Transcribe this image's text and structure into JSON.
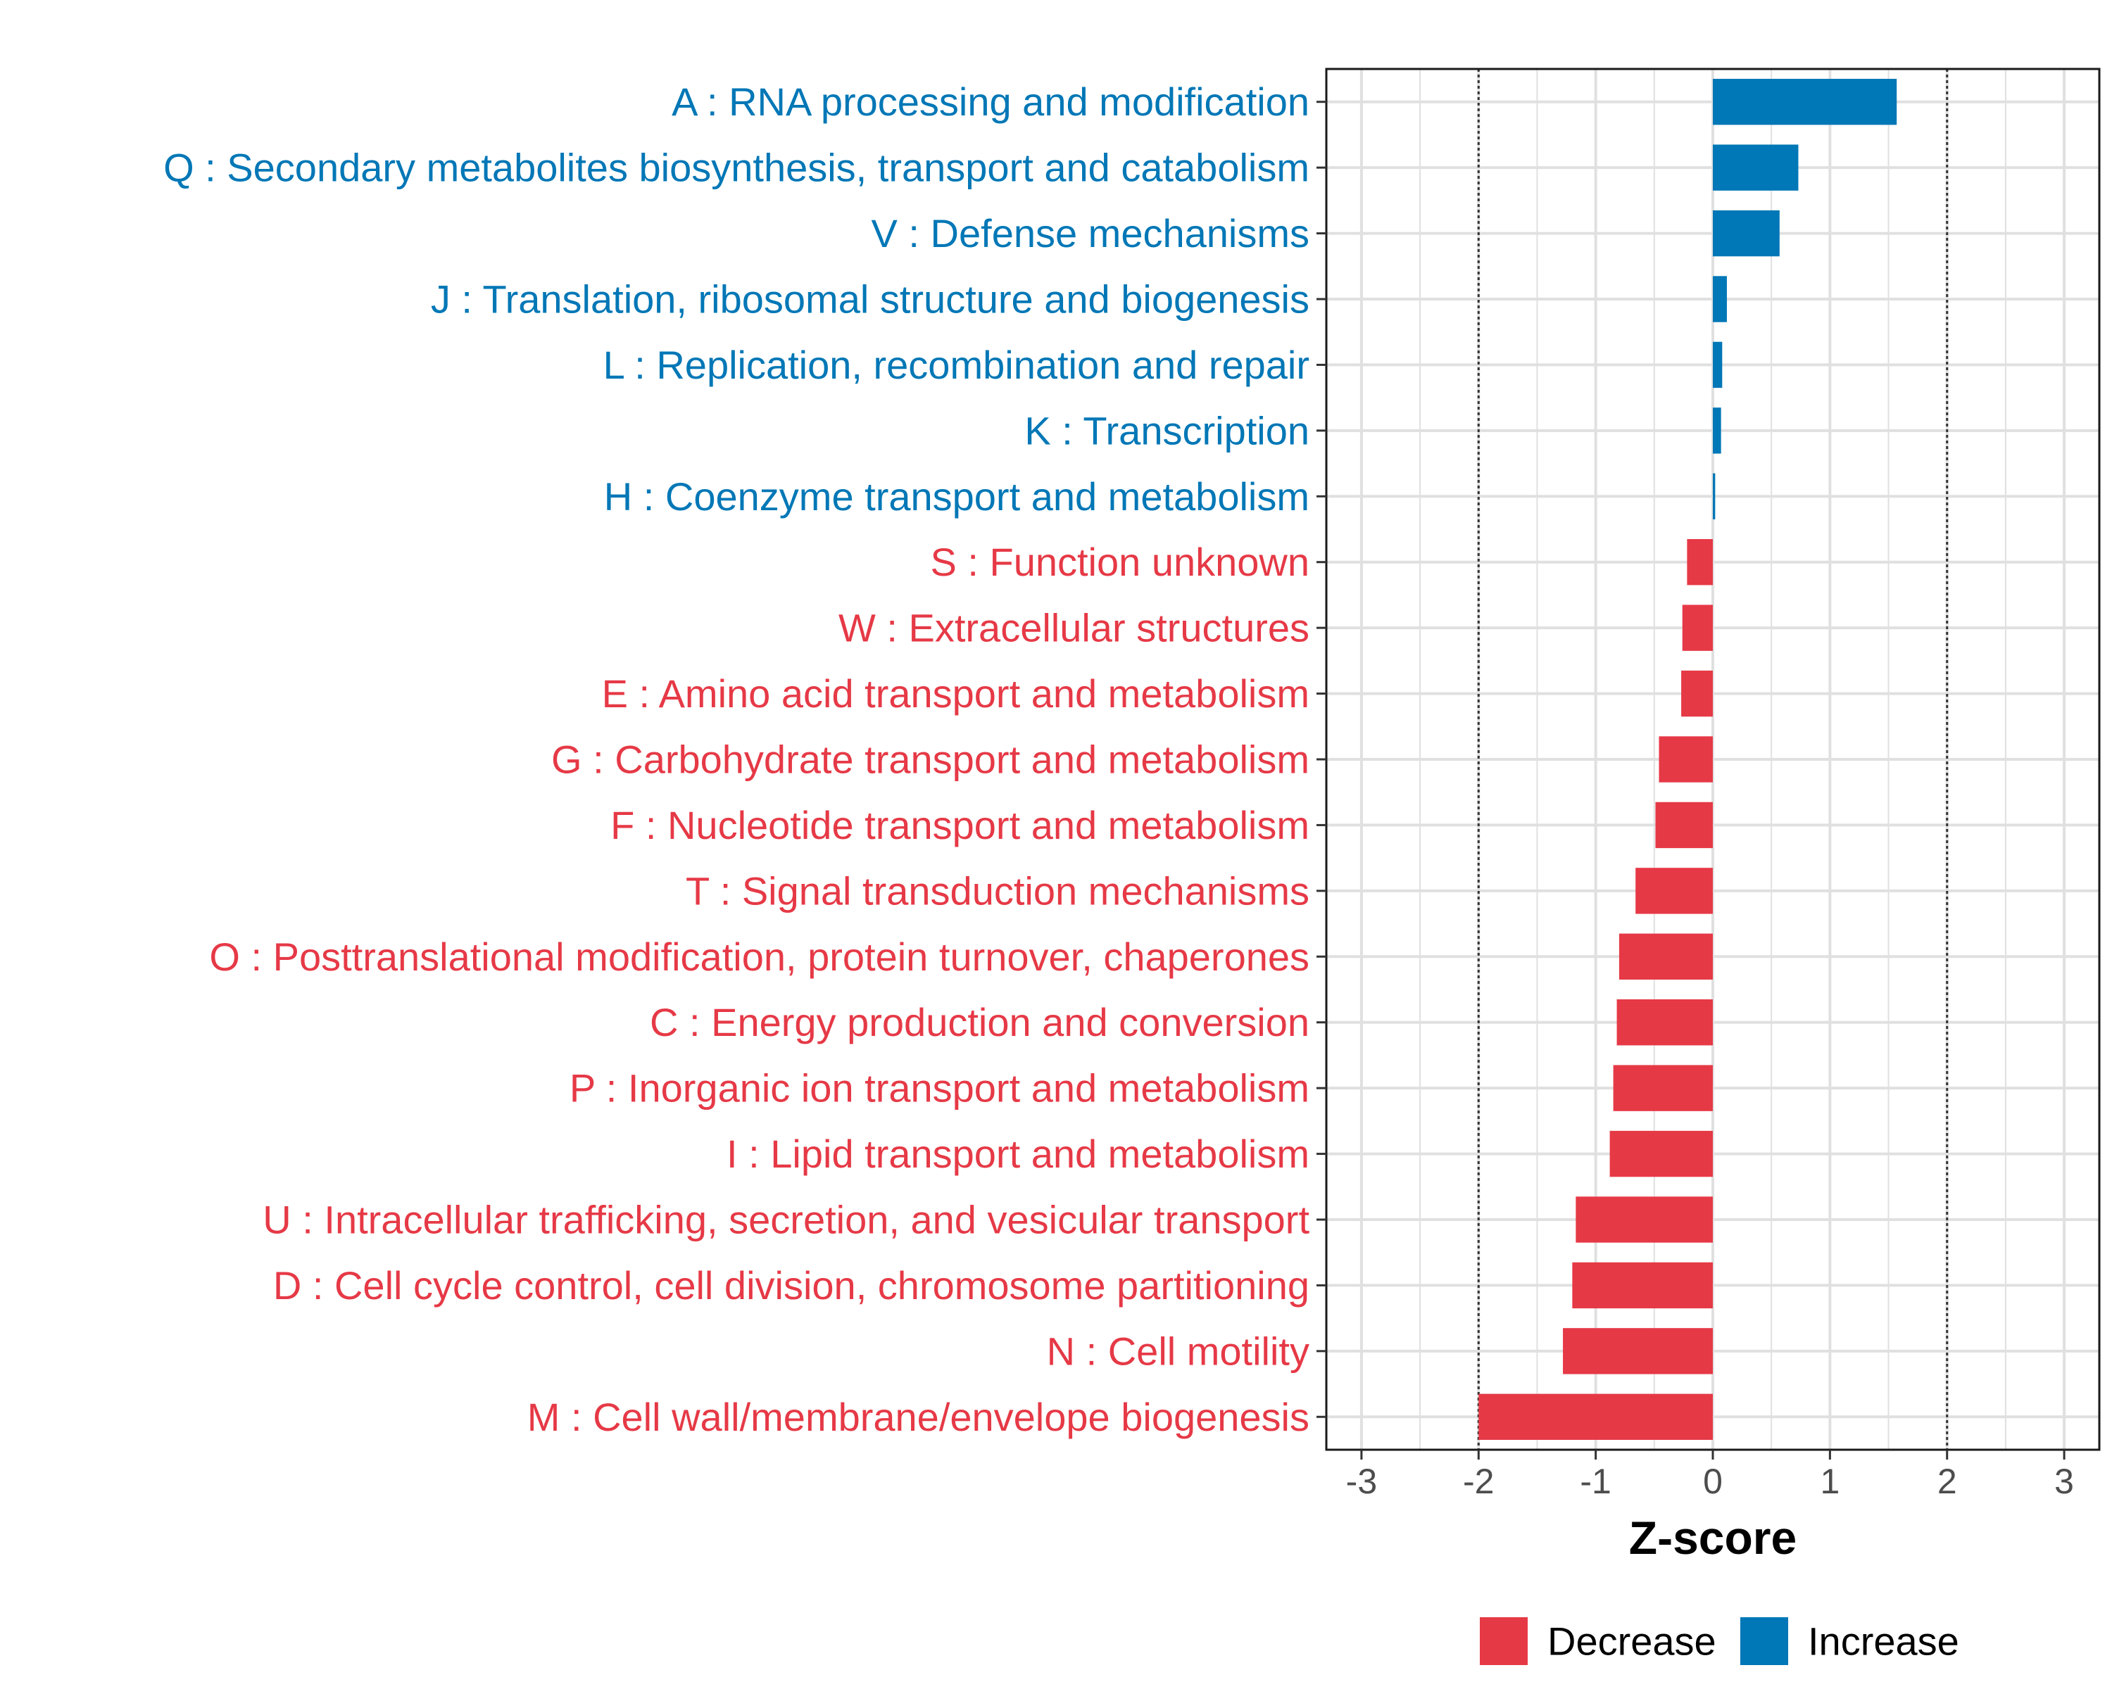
{
  "chart_data": {
    "type": "bar",
    "orientation": "horizontal",
    "title": "",
    "xlabel": "Z-score",
    "ylabel": "",
    "xlim": [
      -3.3,
      3.3
    ],
    "xticks": [
      -3,
      -2,
      -1,
      0,
      1,
      2,
      3
    ],
    "xtick_labels": [
      "-3",
      "-2",
      "-1",
      "0",
      "1",
      "2",
      "3"
    ],
    "reference_lines": [
      -2,
      2
    ],
    "grid": true,
    "legend_position": "bottom",
    "colors": {
      "Decrease": "#e63946",
      "Increase": "#0077b6"
    },
    "legend": [
      {
        "name": "Decrease",
        "color": "#e63946"
      },
      {
        "name": "Increase",
        "color": "#0077b6"
      }
    ],
    "categories": [
      "A : RNA processing and modification",
      "Q : Secondary metabolites biosynthesis, transport and catabolism",
      "V : Defense mechanisms",
      "J : Translation, ribosomal structure and biogenesis",
      "L : Replication, recombination and repair",
      "K : Transcription",
      "H : Coenzyme transport and metabolism",
      "S : Function unknown",
      "W : Extracellular structures",
      "E : Amino acid transport and metabolism",
      "G : Carbohydrate transport and metabolism",
      "F : Nucleotide transport and metabolism",
      "T : Signal transduction mechanisms",
      "O : Posttranslational modification, protein turnover, chaperones",
      "C : Energy production and conversion",
      "P : Inorganic ion transport and metabolism",
      "I : Lipid transport and metabolism",
      "U : Intracellular trafficking, secretion, and vesicular transport",
      "D : Cell cycle control, cell division, chromosome partitioning",
      "N : Cell motility",
      "M : Cell wall/membrane/envelope biogenesis"
    ],
    "values": [
      1.57,
      0.73,
      0.57,
      0.12,
      0.08,
      0.07,
      0.02,
      -0.22,
      -0.26,
      -0.27,
      -0.46,
      -0.49,
      -0.66,
      -0.8,
      -0.82,
      -0.85,
      -0.88,
      -1.17,
      -1.2,
      -1.28,
      -2.0
    ]
  }
}
